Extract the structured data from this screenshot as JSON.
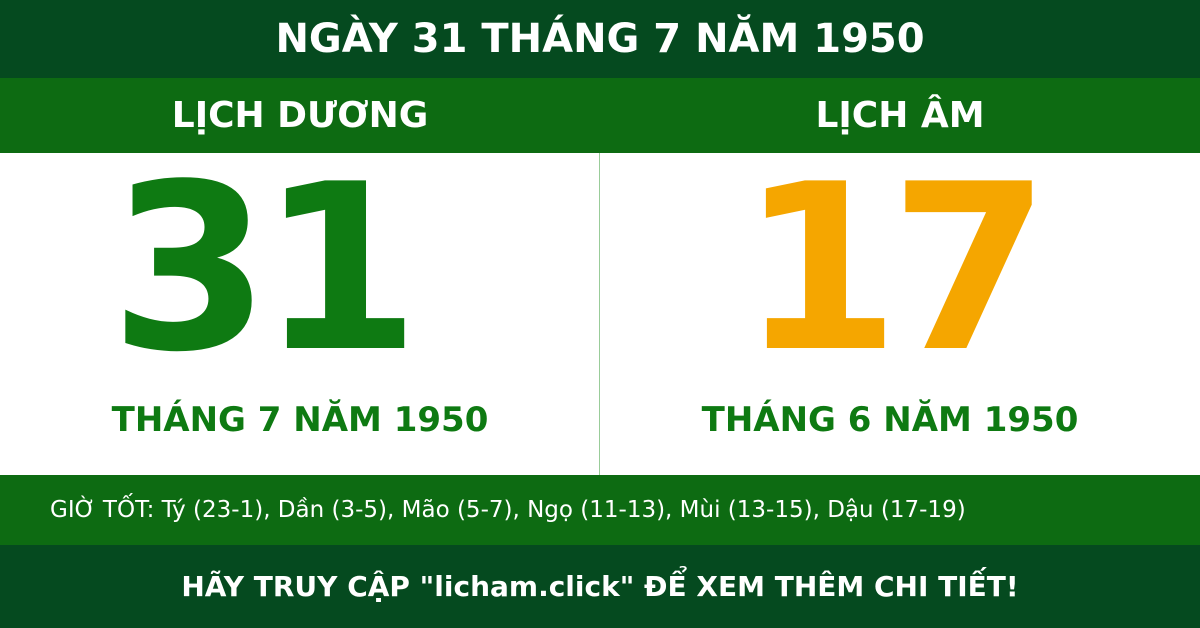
{
  "header": {
    "title": "NGÀY 31 THÁNG 7 NĂM 1950"
  },
  "solar": {
    "label": "LỊCH DƯƠNG",
    "day": "31",
    "month_year": "THÁNG 7 NĂM 1950"
  },
  "lunar": {
    "label": "LỊCH ÂM",
    "day": "17",
    "month_year": "THÁNG 6 NĂM 1950"
  },
  "good_hours": "GIỜ TỐT: Tý (23-1), Dần (3-5), Mão (5-7), Ngọ (11-13), Mùi (13-15), Dậu (17-19)",
  "footer": "HÃY TRUY CẬP \"licham.click\" ĐỂ XEM THÊM CHI TIẾT!"
}
